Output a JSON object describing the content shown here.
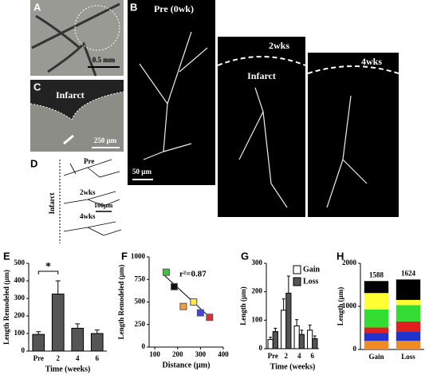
{
  "panels": {
    "A": {
      "letter": "A",
      "scale": "0.5 mm"
    },
    "B": {
      "letter": "B",
      "pre": "Pre (0wk)",
      "scale": "50 µm",
      "w2": "2wks",
      "w4": "4wks",
      "infarct": "Infarct"
    },
    "C": {
      "letter": "C",
      "infarct": "Infarct",
      "scale": "250 µm"
    },
    "D": {
      "letter": "D",
      "pre": "Pre",
      "w2": "2wks",
      "w4": "4wks",
      "scale": "100µm",
      "infarct": "Infarct"
    }
  },
  "chart_data": [
    {
      "type": "bar",
      "letter": "E",
      "ylabel": "Length Remodeled (µm)",
      "xlabel": "Time (weeks)",
      "categories": [
        "Pre",
        "2",
        "4",
        "6"
      ],
      "values": [
        95,
        325,
        130,
        100
      ],
      "errors": [
        15,
        75,
        25,
        20
      ],
      "color": "#555555",
      "ylim": [
        0,
        500
      ],
      "yticks": [
        0,
        100,
        200,
        300,
        400,
        500
      ],
      "annotation": "*"
    },
    {
      "type": "scatter",
      "letter": "F",
      "ylabel": "Length Remodeled (µm)",
      "xlabel": "Distance (µm)",
      "x": [
        150,
        185,
        270,
        225,
        300,
        340
      ],
      "y": [
        830,
        670,
        500,
        450,
        380,
        330
      ],
      "colors": [
        "#33cc33",
        "#111111",
        "#ffee33",
        "#f0a040",
        "#4444dd",
        "#dd3333"
      ],
      "fit_x": [
        140,
        350
      ],
      "fit_y": [
        800,
        310
      ],
      "annotation": "r²=0.87",
      "xlim": [
        75,
        400
      ],
      "xticks": [
        100,
        200,
        300,
        400
      ],
      "ylim": [
        0,
        1000
      ],
      "yticks": [
        0,
        250,
        500,
        750,
        1000
      ]
    },
    {
      "type": "grouped_bar",
      "letter": "G",
      "ylabel": "Length (µm)",
      "xlabel": "Time (weeks)",
      "categories": [
        "Pre",
        "2",
        "4",
        "6"
      ],
      "series": [
        {
          "name": "Gain",
          "color": "#ffffff",
          "values": [
            32,
            135,
            80,
            65
          ],
          "errors": [
            8,
            40,
            22,
            18
          ]
        },
        {
          "name": "Loss",
          "color": "#555555",
          "values": [
            60,
            195,
            50,
            35
          ],
          "errors": [
            12,
            60,
            15,
            10
          ]
        }
      ],
      "ylim": [
        0,
        300
      ],
      "yticks": [
        0,
        100,
        200,
        300
      ]
    },
    {
      "type": "stacked_bar",
      "letter": "H",
      "ylabel": "Length (µm)",
      "categories": [
        "Gain",
        "Loss"
      ],
      "series": [
        {
          "color": "#f08a24",
          "values": [
            200,
            200
          ]
        },
        {
          "color": "#2233cc",
          "values": [
            180,
            220
          ]
        },
        {
          "color": "#e02020",
          "values": [
            130,
            230
          ]
        },
        {
          "color": "#33dd33",
          "values": [
            420,
            380
          ]
        },
        {
          "color": "#ffff33",
          "values": [
            380,
            120
          ]
        },
        {
          "color": "#000000",
          "values": [
            278,
            474
          ]
        }
      ],
      "totals": [
        1588,
        1624
      ],
      "ylim": [
        0,
        2000
      ],
      "yticks": [
        0,
        1000,
        2000
      ]
    }
  ]
}
